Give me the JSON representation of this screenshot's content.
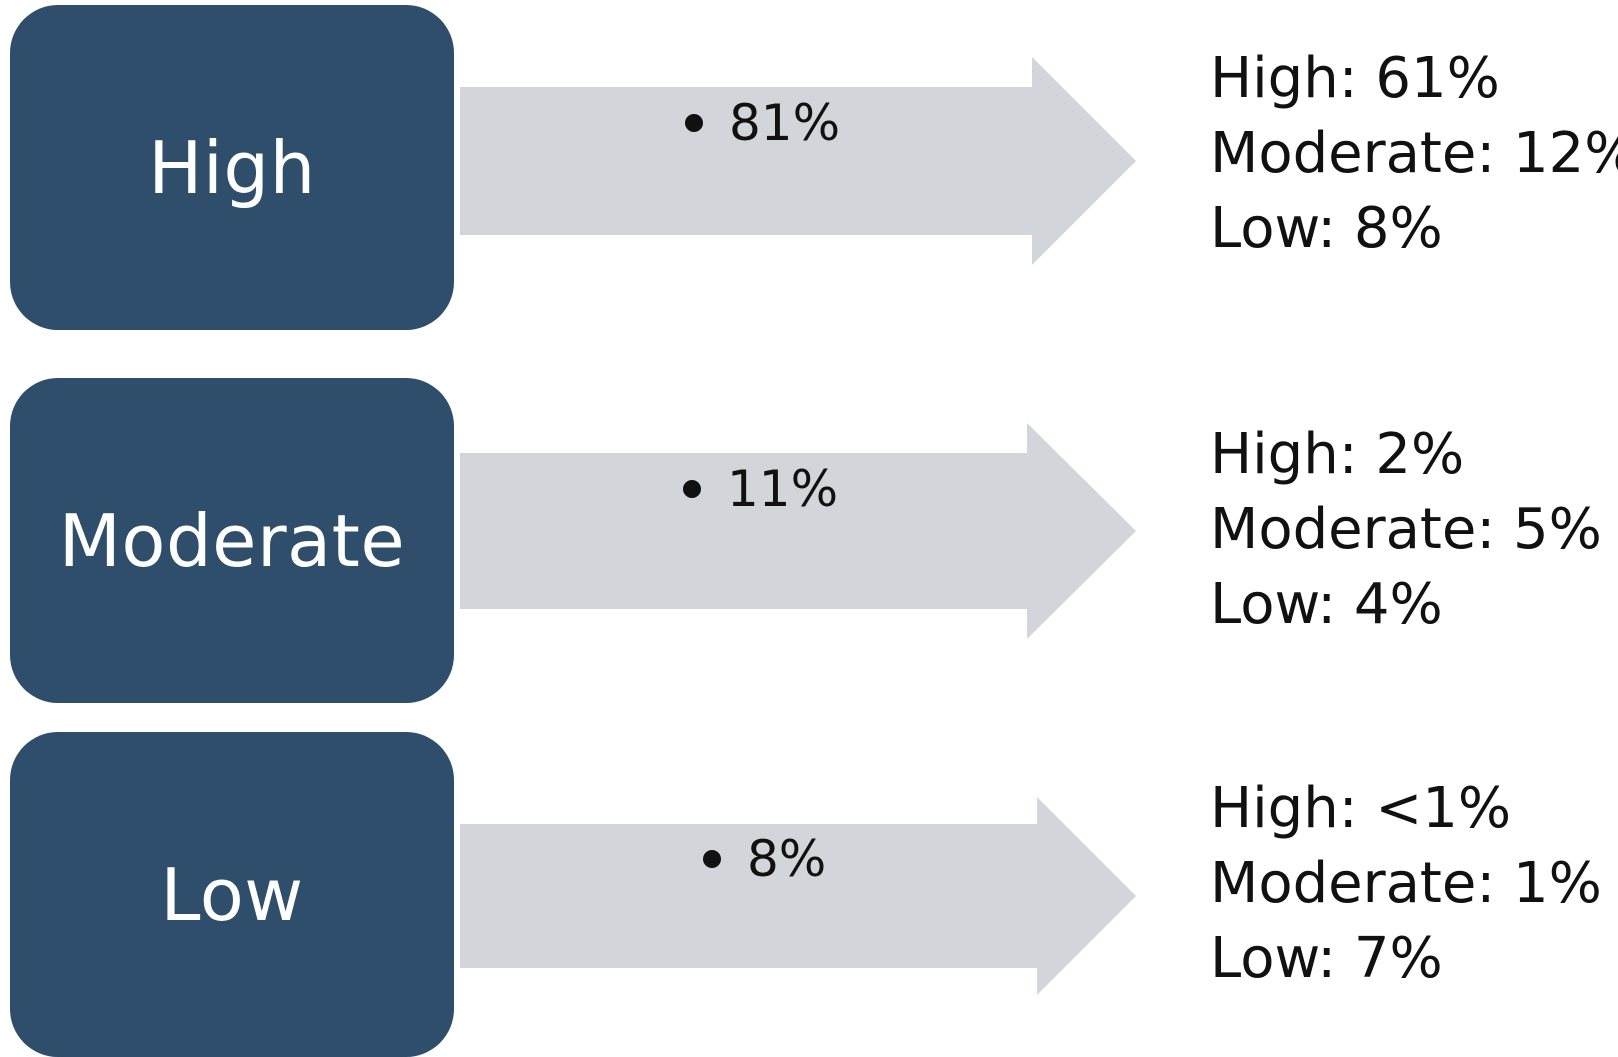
{
  "rows": [
    {
      "category": "High",
      "arrow_value": "81%",
      "outcomes": [
        "High: 61%",
        "Moderate: 12%",
        "Low: 8%"
      ]
    },
    {
      "category": "Moderate",
      "arrow_value": "11%",
      "outcomes": [
        "High: 2%",
        "Moderate: 5%",
        "Low: 4%"
      ]
    },
    {
      "category": "Low",
      "arrow_value": "8%",
      "outcomes": [
        "High: <1%",
        "Moderate: 1%",
        "Low: 7%"
      ]
    }
  ],
  "colors": {
    "box_fill": "#2f4e6b",
    "box_text": "#ffffff",
    "arrow_fill": "#d2d5da",
    "text": "#111111"
  }
}
